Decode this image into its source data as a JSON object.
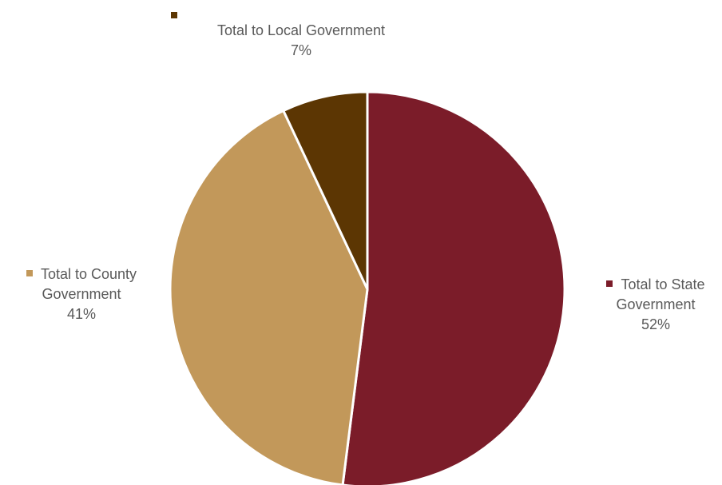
{
  "chart_data": {
    "type": "pie",
    "title": "",
    "start_angle_deg": 0,
    "direction": "clockwise",
    "slices": [
      {
        "label_line1": "Total to State",
        "label_line2": "Government",
        "percent_label": "52%",
        "value": 52,
        "color": "#7B1C29"
      },
      {
        "label_line1": "Total to County",
        "label_line2": "Government",
        "percent_label": "41%",
        "value": 41,
        "color": "#C2985A"
      },
      {
        "label_line1": "Total to Local Government",
        "label_line2": "",
        "percent_label": "7%",
        "value": 7,
        "color": "#5C3603"
      }
    ]
  }
}
